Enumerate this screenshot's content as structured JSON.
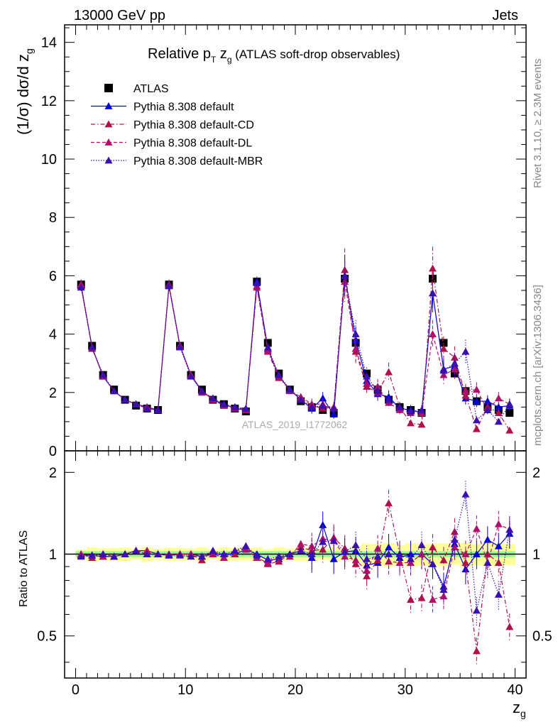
{
  "header": {
    "left_label": "13000 GeV pp",
    "right_label": "Jets"
  },
  "side_labels": {
    "rivet": "Rivet 3.1.10, ≥ 2.3M events",
    "mcplots": "mcplots.cern.ch [arXiv:1306.3436]"
  },
  "watermark": "ATLAS_2019_I1772062",
  "title": {
    "main": "Relative p",
    "sub_T": "T",
    "mid": " z",
    "sub_g": "g",
    "rest": " (ATLAS soft-drop observables)"
  },
  "y_axis_label": {
    "main": "(1/σ) dσ/d z",
    "sub": "g"
  },
  "ratio_y_label": "Ratio to ATLAS",
  "x_axis_label": {
    "main": "z",
    "sub": "g"
  },
  "legend": [
    {
      "label": "ATLAS",
      "color": "#000000",
      "marker": "square",
      "dash": ""
    },
    {
      "label": "Pythia 8.308 default",
      "color": "#0000dd",
      "marker": "triangle",
      "dash": ""
    },
    {
      "label": "Pythia 8.308 default-CD",
      "color": "#b0104a",
      "marker": "triangle",
      "dash": "6,3,1.5,3"
    },
    {
      "label": "Pythia 8.308 default-DL",
      "color": "#b0106a",
      "marker": "triangle",
      "dash": "5,3"
    },
    {
      "label": "Pythia 8.308 default-MBR",
      "color": "#3a10b0",
      "marker": "triangle",
      "dash": "1.5,2"
    }
  ],
  "chart_data": [
    {
      "type": "scatter",
      "panel": "main",
      "xlim": [
        -1,
        41
      ],
      "ylim": [
        0,
        14.6
      ],
      "xticks": [
        "0",
        "10",
        "20",
        "30",
        "40"
      ],
      "yticks": [
        "0",
        "2",
        "4",
        "6",
        "8",
        "10",
        "12",
        "14"
      ],
      "x": [
        0.5,
        1.5,
        2.5,
        3.5,
        4.5,
        5.5,
        6.5,
        7.5,
        8.5,
        9.5,
        10.5,
        11.5,
        12.5,
        13.5,
        14.5,
        15.5,
        16.5,
        17.5,
        18.5,
        19.5,
        20.5,
        21.5,
        22.5,
        23.5,
        24.5,
        25.5,
        26.5,
        27.5,
        28.5,
        29.5,
        30.5,
        31.5,
        32.5,
        33.5,
        34.5,
        35.5,
        36.5,
        37.5,
        38.5,
        39.5
      ],
      "series": [
        {
          "name": "ATLAS",
          "values": [
            5.7,
            3.6,
            2.6,
            2.1,
            1.75,
            1.55,
            1.45,
            1.4,
            5.7,
            3.6,
            2.6,
            2.1,
            1.75,
            1.6,
            1.45,
            1.35,
            5.8,
            3.7,
            2.65,
            2.1,
            1.7,
            1.5,
            1.4,
            1.3,
            5.9,
            3.7,
            2.65,
            2.1,
            1.75,
            1.5,
            1.4,
            1.3,
            5.9,
            3.7,
            2.65,
            2.05,
            1.7,
            1.5,
            1.4,
            1.3
          ]
        },
        {
          "name": "Pythia 8.308 default",
          "values": [
            5.65,
            3.55,
            2.55,
            2.05,
            1.75,
            1.6,
            1.5,
            1.4,
            5.65,
            3.6,
            2.6,
            2.05,
            1.75,
            1.6,
            1.45,
            1.4,
            5.8,
            3.5,
            2.55,
            2.1,
            1.75,
            1.45,
            1.8,
            1.25,
            6.0,
            3.8,
            2.4,
            1.95,
            1.85,
            1.45,
            1.4,
            1.3,
            5.4,
            2.8,
            2.9,
            1.8,
            1.7,
            1.7,
            1.5,
            1.55
          ]
        },
        {
          "name": "Pythia 8.308 default-CD",
          "values": [
            5.7,
            3.5,
            2.6,
            2.05,
            1.75,
            1.6,
            1.45,
            1.4,
            5.65,
            3.6,
            2.6,
            2.0,
            1.8,
            1.55,
            1.45,
            1.45,
            5.6,
            3.4,
            2.5,
            2.1,
            1.8,
            1.55,
            1.45,
            1.5,
            6.2,
            3.4,
            2.2,
            2.0,
            2.7,
            1.5,
            0.95,
            0.9,
            6.25,
            3.5,
            3.2,
            1.9,
            0.75,
            1.5,
            1.3,
            0.7
          ]
        },
        {
          "name": "Pythia 8.308 default-DL",
          "values": [
            5.7,
            3.55,
            2.55,
            2.05,
            1.75,
            1.6,
            1.5,
            1.4,
            5.7,
            3.6,
            2.6,
            2.05,
            1.75,
            1.55,
            1.5,
            1.4,
            5.65,
            3.45,
            2.6,
            2.05,
            1.85,
            1.6,
            1.6,
            1.45,
            5.8,
            3.5,
            2.3,
            2.2,
            1.65,
            1.4,
            1.3,
            1.3,
            4.0,
            2.6,
            2.8,
            2.05,
            2.1,
            1.4,
            1.8,
            1.6
          ]
        },
        {
          "name": "Pythia 8.308 default-MBR",
          "values": [
            5.6,
            3.55,
            2.6,
            2.05,
            1.75,
            1.6,
            1.45,
            1.4,
            5.65,
            3.55,
            2.55,
            2.05,
            1.8,
            1.6,
            1.5,
            1.45,
            5.75,
            3.55,
            2.6,
            2.1,
            1.75,
            1.5,
            1.55,
            1.45,
            6.0,
            4.0,
            2.55,
            2.05,
            1.75,
            1.5,
            1.35,
            1.4,
            5.4,
            2.75,
            3.0,
            3.4,
            1.05,
            1.4,
            1.0,
            1.6
          ]
        }
      ]
    },
    {
      "type": "scatter",
      "panel": "ratio",
      "xlim": [
        -1,
        41
      ],
      "ylim": [
        0.35,
        2.4
      ],
      "yticks": [
        "0.5",
        "1",
        "2"
      ],
      "ylabel": "Ratio to ATLAS",
      "xlabel": "z_g",
      "x": [
        0.5,
        1.5,
        2.5,
        3.5,
        4.5,
        5.5,
        6.5,
        7.5,
        8.5,
        9.5,
        10.5,
        11.5,
        12.5,
        13.5,
        14.5,
        15.5,
        16.5,
        17.5,
        18.5,
        19.5,
        20.5,
        21.5,
        22.5,
        23.5,
        24.5,
        25.5,
        26.5,
        27.5,
        28.5,
        29.5,
        30.5,
        31.5,
        32.5,
        33.5,
        34.5,
        35.5,
        36.5,
        37.5,
        38.5,
        39.5
      ],
      "series": [
        {
          "name": "Pythia 8.308 default",
          "values": [
            0.99,
            0.99,
            0.98,
            0.98,
            1.0,
            1.03,
            1.03,
            1.0,
            0.99,
            1.0,
            1.0,
            0.98,
            1.0,
            1.0,
            1.0,
            1.04,
            1.0,
            0.95,
            0.96,
            1.0,
            1.03,
            0.97,
            1.28,
            0.96,
            1.02,
            1.03,
            0.91,
            0.93,
            1.06,
            0.97,
            1.0,
            1.0,
            0.92,
            0.76,
            1.09,
            0.88,
            1.0,
            1.13,
            1.07,
            1.19
          ]
        },
        {
          "name": "Pythia 8.308 default-CD",
          "values": [
            1.0,
            0.97,
            1.0,
            0.98,
            1.0,
            1.03,
            1.0,
            1.0,
            0.99,
            1.0,
            1.0,
            0.95,
            1.03,
            0.97,
            1.0,
            1.07,
            0.97,
            0.92,
            0.94,
            1.0,
            1.06,
            1.03,
            1.04,
            1.15,
            1.05,
            0.92,
            0.83,
            0.95,
            1.54,
            1.0,
            0.68,
            0.69,
            1.06,
            0.95,
            1.21,
            0.93,
            0.44,
            1.0,
            0.93,
            0.54
          ]
        },
        {
          "name": "Pythia 8.308 default-DL",
          "values": [
            1.0,
            0.99,
            0.98,
            0.98,
            1.0,
            1.03,
            1.03,
            1.0,
            1.0,
            1.0,
            1.0,
            0.98,
            1.0,
            0.97,
            1.03,
            1.04,
            0.97,
            0.93,
            0.98,
            0.98,
            1.09,
            1.07,
            1.14,
            1.12,
            0.98,
            0.95,
            0.87,
            1.05,
            0.94,
            0.93,
            0.93,
            1.0,
            0.68,
            0.7,
            1.06,
            1.0,
            1.24,
            0.93,
            1.29,
            1.23
          ]
        },
        {
          "name": "Pythia 8.308 default-MBR",
          "values": [
            0.98,
            0.99,
            1.0,
            0.98,
            1.0,
            1.03,
            1.0,
            1.0,
            0.99,
            0.99,
            0.98,
            0.98,
            1.03,
            1.0,
            1.03,
            1.07,
            0.99,
            0.96,
            0.98,
            1.0,
            1.03,
            1.0,
            1.11,
            1.12,
            1.02,
            1.08,
            0.96,
            0.98,
            1.0,
            1.0,
            0.96,
            1.08,
            0.92,
            0.74,
            1.13,
            1.66,
            0.62,
            0.93,
            0.71,
            1.23
          ]
        }
      ]
    }
  ]
}
